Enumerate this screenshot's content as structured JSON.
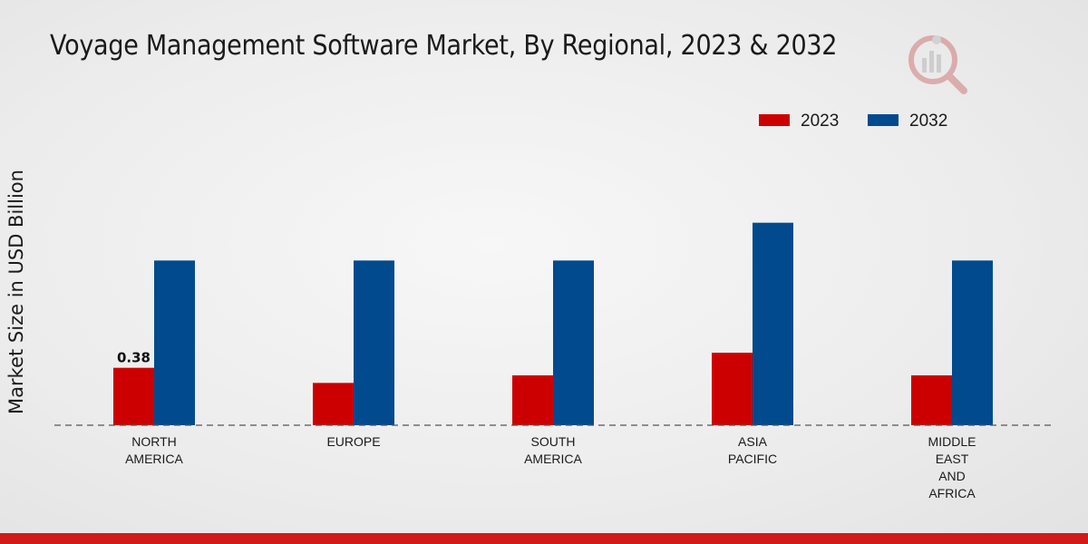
{
  "colors": {
    "series_2023": "#cc0000",
    "series_2032": "#004a8d",
    "footer": "#d11a1a",
    "baseline": "#555555"
  },
  "logo_icon": "market-research-logo-icon",
  "chart_data": {
    "type": "bar",
    "title": "Voyage Management Software Market, By Regional, 2023 & 2032",
    "xlabel": "",
    "ylabel": "Market Size in USD Billion",
    "ylim": [
      0,
      1.8
    ],
    "grid": false,
    "legend_position": "top-right",
    "categories": [
      [
        "NORTH",
        "AMERICA"
      ],
      [
        "EUROPE"
      ],
      [
        "SOUTH",
        "AMERICA"
      ],
      [
        "ASIA",
        "PACIFIC"
      ],
      [
        "MIDDLE",
        "EAST",
        "AND",
        "AFRICA"
      ]
    ],
    "series": [
      {
        "name": "2023",
        "values": [
          0.38,
          0.28,
          0.33,
          0.48,
          0.33
        ],
        "labels": [
          "0.38",
          null,
          null,
          null,
          null
        ]
      },
      {
        "name": "2032",
        "values": [
          1.09,
          1.09,
          1.09,
          1.34,
          1.09
        ],
        "labels": [
          null,
          null,
          null,
          null,
          null
        ]
      }
    ]
  }
}
